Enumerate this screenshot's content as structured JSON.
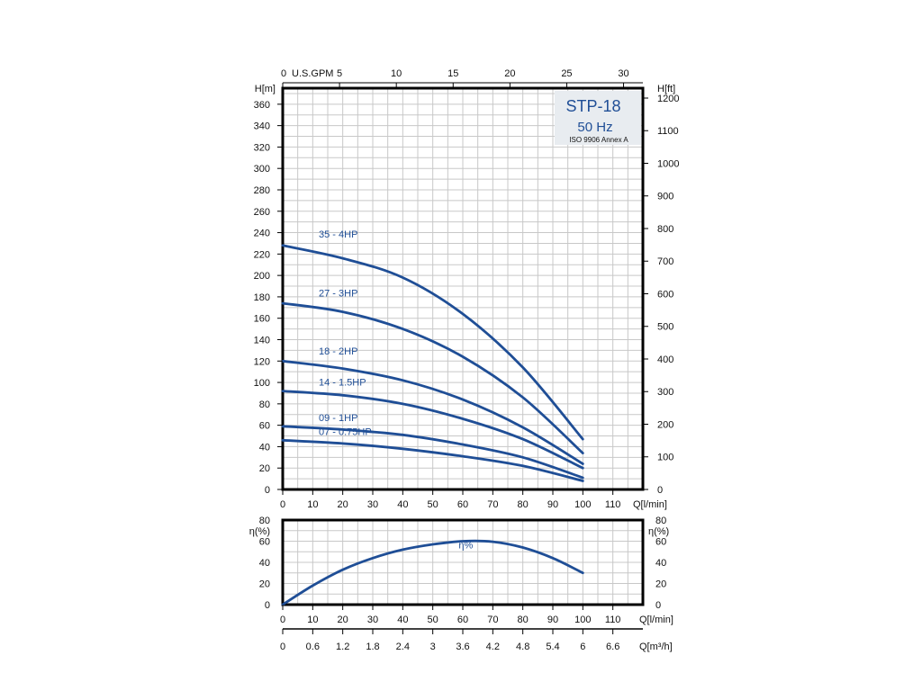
{
  "colors": {
    "curve": "#1f4e96",
    "title_box": "#e8ecf0",
    "grid": "#c8c8c8"
  },
  "title_box": {
    "model": "STP-18",
    "freq": "50 Hz",
    "standard": "ISO 9906 Annex A"
  },
  "chart_data": [
    {
      "type": "line",
      "name": "head",
      "ylabel_left": "H[m]",
      "ylabel_right": "H[ft]",
      "xlabel": "Q[l/min]",
      "xlabel_top": "U.S.GPM",
      "xlim": [
        0,
        120
      ],
      "ylim": [
        0,
        375
      ],
      "x_ticks": [
        0,
        10,
        20,
        30,
        40,
        50,
        60,
        70,
        80,
        90,
        100,
        110
      ],
      "y_ticks": [
        0,
        20,
        40,
        60,
        80,
        100,
        120,
        140,
        160,
        180,
        200,
        220,
        240,
        260,
        280,
        300,
        320,
        340,
        360
      ],
      "y_right_ticks": [
        0,
        100,
        200,
        300,
        400,
        500,
        600,
        700,
        800,
        900,
        1000,
        1100,
        1200
      ],
      "x_top_ticks": [
        0,
        5,
        10,
        15,
        20,
        25,
        30
      ],
      "grid": true,
      "series": [
        {
          "name": "35 - 4HP",
          "x": [
            0,
            20,
            40,
            60,
            80,
            100
          ],
          "y": [
            228,
            216,
            198,
            164,
            114,
            47
          ]
        },
        {
          "name": "27 - 3HP",
          "x": [
            0,
            20,
            40,
            60,
            80,
            100
          ],
          "y": [
            174,
            166,
            150,
            124,
            86,
            34
          ]
        },
        {
          "name": "18 - 2HP",
          "x": [
            0,
            20,
            40,
            60,
            80,
            100
          ],
          "y": [
            120,
            113,
            102,
            84,
            58,
            24
          ]
        },
        {
          "name": "14 - 1.5HP",
          "x": [
            0,
            20,
            40,
            60,
            80,
            100
          ],
          "y": [
            92,
            88,
            80,
            66,
            47,
            20
          ]
        },
        {
          "name": "09 - 1HP",
          "x": [
            0,
            20,
            40,
            60,
            80,
            100
          ],
          "y": [
            59,
            56,
            51,
            42,
            30,
            11
          ]
        },
        {
          "name": "07 - 0.75HP",
          "x": [
            0,
            20,
            40,
            60,
            80,
            100
          ],
          "y": [
            46,
            43,
            38,
            31,
            22,
            8
          ]
        }
      ]
    },
    {
      "type": "line",
      "name": "efficiency",
      "ylabel_left": "η(%)",
      "ylabel_right": "η(%)",
      "xlabel": "Q[l/min]",
      "xlabel_bottom": "Q[m³/h]",
      "xlim": [
        0,
        120
      ],
      "ylim": [
        0,
        80
      ],
      "x_ticks": [
        0,
        10,
        20,
        30,
        40,
        50,
        60,
        70,
        80,
        90,
        100,
        110
      ],
      "y_ticks": [
        0,
        20,
        40,
        60,
        80
      ],
      "x_m3h_ticks": [
        "0",
        "0.6",
        "1.2",
        "1.8",
        "2.4",
        "3",
        "3.6",
        "4.2",
        "4.8",
        "5.4",
        "6",
        "6.6"
      ],
      "grid": true,
      "series": [
        {
          "name": "η%",
          "x": [
            0,
            10,
            20,
            30,
            40,
            50,
            60,
            70,
            80,
            90,
            100
          ],
          "y": [
            0,
            18,
            33,
            44,
            52,
            57,
            60,
            59.5,
            54,
            44,
            30
          ]
        }
      ]
    }
  ]
}
